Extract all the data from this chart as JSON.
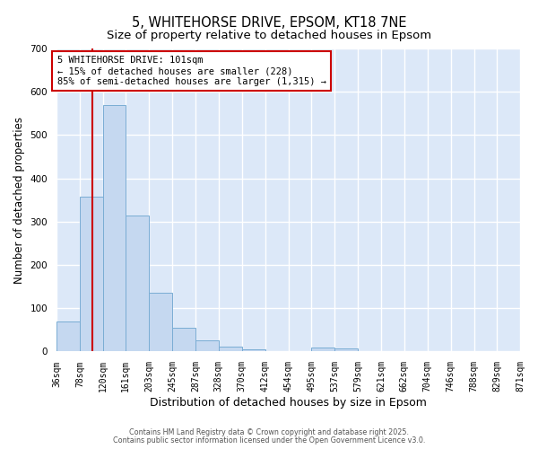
{
  "title1": "5, WHITEHORSE DRIVE, EPSOM, KT18 7NE",
  "title2": "Size of property relative to detached houses in Epsom",
  "xlabel": "Distribution of detached houses by size in Epsom",
  "ylabel": "Number of detached properties",
  "bar_edges": [
    36,
    78,
    120,
    161,
    203,
    245,
    287,
    328,
    370,
    412,
    454,
    495,
    537,
    579,
    621,
    662,
    704,
    746,
    788,
    829,
    871
  ],
  "bar_heights": [
    70,
    358,
    570,
    315,
    135,
    55,
    26,
    12,
    5,
    0,
    0,
    10,
    7,
    0,
    0,
    0,
    0,
    0,
    0,
    0
  ],
  "bar_color": "#c5d8f0",
  "bar_edge_color": "#7aadd4",
  "property_size": 101,
  "red_line_color": "#cc0000",
  "annotation_text": "5 WHITEHORSE DRIVE: 101sqm\n← 15% of detached houses are smaller (228)\n85% of semi-detached houses are larger (1,315) →",
  "annotation_box_color": "#ffffff",
  "annotation_box_edge_color": "#cc0000",
  "ylim": [
    0,
    700
  ],
  "yticks": [
    0,
    100,
    200,
    300,
    400,
    500,
    600,
    700
  ],
  "plot_bg_color": "#dce8f8",
  "fig_bg_color": "#ffffff",
  "grid_color": "#ffffff",
  "footer1": "Contains HM Land Registry data © Crown copyright and database right 2025.",
  "footer2": "Contains public sector information licensed under the Open Government Licence v3.0.",
  "title1_fontsize": 10.5,
  "title2_fontsize": 9.5,
  "tick_label_fontsize": 7,
  "ylabel_fontsize": 8.5,
  "xlabel_fontsize": 9,
  "annotation_fontsize": 7.5,
  "footer_fontsize": 5.8
}
